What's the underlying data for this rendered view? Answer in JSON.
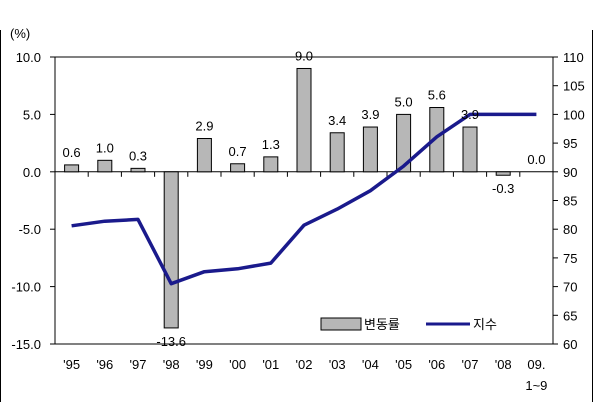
{
  "chart_data": {
    "type": "bar",
    "title": "",
    "ylabel_left_unit": "(%)",
    "categories": [
      "'95",
      "'96",
      "'97",
      "'98",
      "'99",
      "'00",
      "'01",
      "'02",
      "'03",
      "'04",
      "'05",
      "'06",
      "'07",
      "'08",
      "09.\n1~9"
    ],
    "series": [
      {
        "name": "변동률",
        "type": "bar",
        "axis": "left",
        "color": "#b7b7b7",
        "values": [
          0.6,
          1.0,
          0.3,
          -13.6,
          2.9,
          0.7,
          1.3,
          9.0,
          3.4,
          3.9,
          5.0,
          5.6,
          3.9,
          -0.3,
          0.0
        ],
        "labels": [
          "0.6",
          "1.0",
          "0.3",
          "-13.6",
          "2.9",
          "0.7",
          "1.3",
          "9.0",
          "3.4",
          "3.9",
          "5.0",
          "5.6",
          "3.9",
          "-0.3",
          "0.0"
        ]
      },
      {
        "name": "지수",
        "type": "line",
        "axis": "right",
        "color": "#1a1a8c",
        "values": [
          80.6,
          81.4,
          81.7,
          70.5,
          72.6,
          73.1,
          74.1,
          80.7,
          83.5,
          86.7,
          91.0,
          96.1,
          100.0,
          100.0,
          100.0
        ]
      }
    ],
    "left_axis": {
      "min": -15.0,
      "max": 10.0,
      "ticks": [
        "10.0",
        "5.0",
        "0.0",
        "-5.0",
        "-10.0",
        "-15.0"
      ]
    },
    "right_axis": {
      "min": 60,
      "max": 110,
      "ticks": [
        "110",
        "105",
        "100",
        "95",
        "90",
        "85",
        "80",
        "75",
        "70",
        "65",
        "60"
      ]
    },
    "legend_position": "bottom-right",
    "grid": false
  }
}
